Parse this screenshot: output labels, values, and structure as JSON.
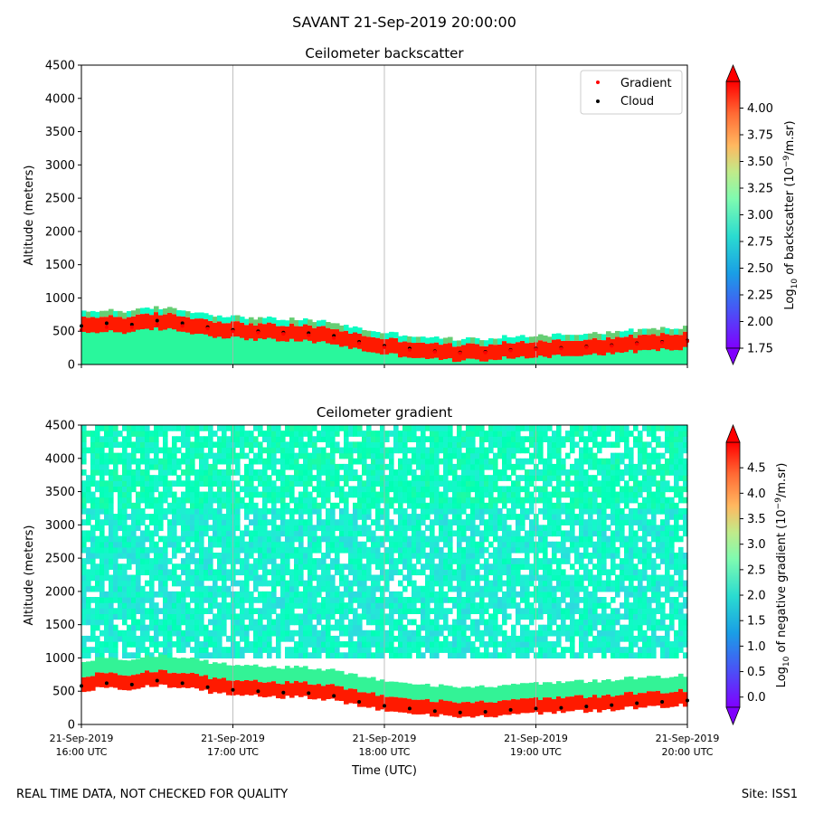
{
  "suptitle": "SAVANT 21-Sep-2019 20:00:00",
  "footer_left": "REAL TIME DATA, NOT CHECKED FOR QUALITY",
  "footer_right": "Site: ISS1",
  "x_tick_labels": [
    [
      "21-Sep-2019",
      "16:00 UTC"
    ],
    [
      "21-Sep-2019",
      "17:00 UTC"
    ],
    [
      "21-Sep-2019",
      "18:00 UTC"
    ],
    [
      "21-Sep-2019",
      "19:00 UTC"
    ],
    [
      "21-Sep-2019",
      "20:00 UTC"
    ]
  ],
  "chart_data": [
    {
      "type": "heatmap",
      "title": "Ceilometer backscatter",
      "ylabel": "Altitude (meters)",
      "xlabel": "",
      "xlim": [
        "16:00",
        "20:00"
      ],
      "ylim": [
        0,
        4500
      ],
      "x_ticks": [
        "16:00",
        "17:00",
        "18:00",
        "19:00",
        "20:00"
      ],
      "y_ticks": [
        0,
        500,
        1000,
        1500,
        2000,
        2500,
        3000,
        3500,
        4000,
        4500
      ],
      "grid": "vertical",
      "colorbar": {
        "label_prefix": "Log",
        "label_sub": "10",
        "label_mid": " of backscatter (10",
        "label_sup": "−9",
        "label_suffix": "/m.sr)",
        "range": [
          1.75,
          4.25
        ],
        "ticks": [
          "1.75",
          "2.00",
          "2.25",
          "2.50",
          "2.75",
          "3.00",
          "3.25",
          "3.50",
          "3.75",
          "4.00"
        ],
        "colormap": "rainbow"
      },
      "legend": {
        "placement": "top-right",
        "entries": [
          {
            "label": "Gradient",
            "color": "#ff0000"
          },
          {
            "label": "Cloud",
            "color": "#000000"
          }
        ]
      },
      "series": [
        {
          "name": "Cloud",
          "points": [
            [
              "16:00",
              580
            ],
            [
              "16:10",
              620
            ],
            [
              "16:20",
              600
            ],
            [
              "16:30",
              660
            ],
            [
              "16:40",
              620
            ],
            [
              "16:50",
              560
            ],
            [
              "17:00",
              520
            ],
            [
              "17:10",
              500
            ],
            [
              "17:20",
              480
            ],
            [
              "17:30",
              470
            ],
            [
              "17:40",
              430
            ],
            [
              "17:50",
              340
            ],
            [
              "18:00",
              280
            ],
            [
              "18:10",
              240
            ],
            [
              "18:20",
              200
            ],
            [
              "18:30",
              180
            ],
            [
              "18:40",
              190
            ],
            [
              "18:50",
              220
            ],
            [
              "19:00",
              240
            ],
            [
              "19:10",
              250
            ],
            [
              "19:20",
              270
            ],
            [
              "19:30",
              290
            ],
            [
              "19:40",
              320
            ],
            [
              "19:50",
              340
            ],
            [
              "20:00",
              360
            ]
          ]
        },
        {
          "name": "Gradient",
          "points": [
            [
              "16:00",
              520
            ],
            [
              "16:10",
              560
            ],
            [
              "16:20",
              560
            ],
            [
              "16:30",
              600
            ],
            [
              "16:40",
              580
            ],
            [
              "16:50",
              540
            ],
            [
              "17:00",
              500
            ],
            [
              "17:10",
              480
            ],
            [
              "17:20",
              460
            ],
            [
              "17:30",
              440
            ],
            [
              "17:40",
              400
            ],
            [
              "17:50",
              320
            ],
            [
              "18:00",
              260
            ],
            [
              "18:10",
              220
            ],
            [
              "18:20",
              190
            ],
            [
              "18:30",
              170
            ],
            [
              "18:40",
              180
            ],
            [
              "18:50",
              210
            ],
            [
              "19:00",
              230
            ],
            [
              "19:10",
              240
            ],
            [
              "19:20",
              260
            ],
            [
              "19:30",
              280
            ],
            [
              "19:40",
              310
            ],
            [
              "19:50",
              330
            ],
            [
              "20:00",
              350
            ]
          ]
        }
      ]
    },
    {
      "type": "heatmap",
      "title": "Ceilometer gradient",
      "ylabel": "Altitude (meters)",
      "xlabel": "Time (UTC)",
      "xlim": [
        "16:00",
        "20:00"
      ],
      "ylim": [
        0,
        4500
      ],
      "x_ticks": [
        "16:00",
        "17:00",
        "18:00",
        "19:00",
        "20:00"
      ],
      "y_ticks": [
        0,
        500,
        1000,
        1500,
        2000,
        2500,
        3000,
        3500,
        4000,
        4500
      ],
      "grid": "vertical",
      "colorbar": {
        "label_prefix": "Log",
        "label_sub": "10",
        "label_mid": " of negative gradient (10",
        "label_sup": "−9",
        "label_suffix": "/m.sr)",
        "range": [
          -0.2,
          5.0
        ],
        "ticks": [
          "0.0",
          "0.5",
          "1.0",
          "1.5",
          "2.0",
          "2.5",
          "3.0",
          "3.5",
          "4.0",
          "4.5"
        ],
        "colormap": "rainbow"
      },
      "series": [
        {
          "name": "Cloud",
          "points": [
            [
              "16:00",
              580
            ],
            [
              "16:10",
              620
            ],
            [
              "16:20",
              600
            ],
            [
              "16:30",
              660
            ],
            [
              "16:40",
              620
            ],
            [
              "16:50",
              560
            ],
            [
              "17:00",
              520
            ],
            [
              "17:10",
              500
            ],
            [
              "17:20",
              480
            ],
            [
              "17:30",
              470
            ],
            [
              "17:40",
              430
            ],
            [
              "17:50",
              340
            ],
            [
              "18:00",
              280
            ],
            [
              "18:10",
              240
            ],
            [
              "18:20",
              200
            ],
            [
              "18:30",
              180
            ],
            [
              "18:40",
              190
            ],
            [
              "18:50",
              220
            ],
            [
              "19:00",
              240
            ],
            [
              "19:10",
              250
            ],
            [
              "19:20",
              270
            ],
            [
              "19:30",
              290
            ],
            [
              "19:40",
              320
            ],
            [
              "19:50",
              340
            ],
            [
              "20:00",
              360
            ]
          ]
        }
      ]
    }
  ]
}
